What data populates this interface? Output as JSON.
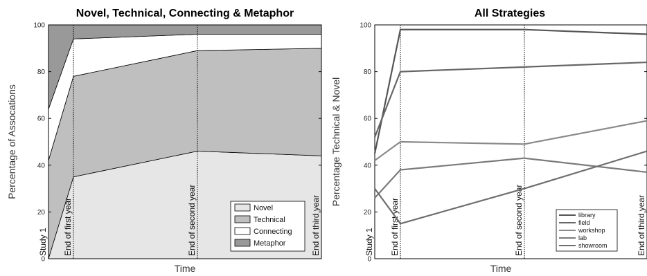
{
  "chart_data": [
    {
      "type": "area",
      "title": "Novel, Technical, Connecting & Metaphor",
      "xlabel": "Time",
      "ylabel": "Percentage of Assocations",
      "ylim": [
        0,
        100
      ],
      "yticks": [
        0,
        20,
        40,
        60,
        80,
        100
      ],
      "stacked": true,
      "x": [
        0,
        1,
        2,
        3
      ],
      "time_labels": [
        "Study 1",
        "End of first year",
        "End of second year",
        "End of third year"
      ],
      "series": [
        {
          "name": "Novel",
          "color": "#e6e6e6",
          "values": [
            0,
            35,
            46,
            44
          ]
        },
        {
          "name": "Technical",
          "color": "#bfbfbf",
          "values": [
            42,
            43,
            43,
            46
          ]
        },
        {
          "name": "Connecting",
          "color": "#ffffff",
          "values": [
            22,
            16,
            7,
            6
          ]
        },
        {
          "name": "Metaphor",
          "color": "#999999",
          "values": [
            36,
            6,
            4,
            4
          ]
        }
      ],
      "legend_position": "bottom-right"
    },
    {
      "type": "line",
      "title": "All Strategies",
      "xlabel": "Time",
      "ylabel": "Percentage Technical & Novel",
      "ylim": [
        0,
        100
      ],
      "yticks": [
        0,
        20,
        40,
        60,
        80,
        100
      ],
      "x": [
        0,
        1,
        2,
        3
      ],
      "time_labels": [
        "Study 1",
        "End of first year",
        "End of second year",
        "End of third year"
      ],
      "series": [
        {
          "name": "library",
          "color": "#555555",
          "values": [
            45,
            98,
            98,
            96
          ]
        },
        {
          "name": "field",
          "color": "#666666",
          "values": [
            52,
            80,
            82,
            84
          ]
        },
        {
          "name": "workshop",
          "color": "#8a8a8a",
          "values": [
            42,
            50,
            49,
            59
          ]
        },
        {
          "name": "lab",
          "color": "#7a7a7a",
          "values": [
            26,
            38,
            43,
            37
          ]
        },
        {
          "name": "showroom",
          "color": "#6e6e6e",
          "values": [
            30,
            15,
            30,
            46
          ]
        }
      ],
      "legend_position": "bottom-right"
    }
  ]
}
